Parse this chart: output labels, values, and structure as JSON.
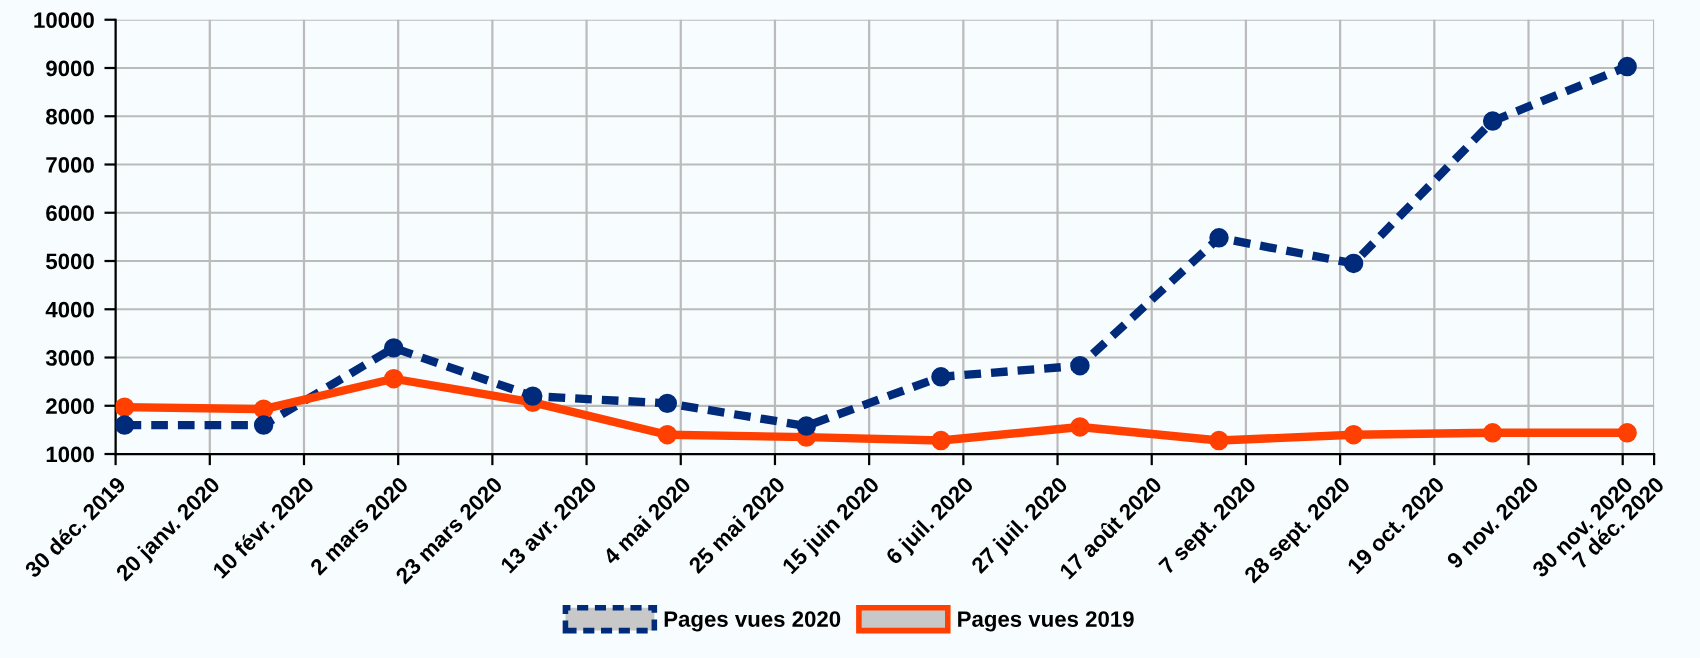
{
  "chart_data": {
    "type": "line",
    "x": [
      "2020-01-01",
      "2020-02-01",
      "2020-03-01",
      "2020-04-01",
      "2020-05-01",
      "2020-06-01",
      "2020-07-01",
      "2020-08-01",
      "2020-09-01",
      "2020-10-01",
      "2020-11-01",
      "2020-12-01"
    ],
    "series": [
      {
        "name": "Pages vues 2020",
        "color": "#002a7a",
        "line_style": "dashed",
        "values": [
          1600,
          1600,
          3200,
          2200,
          2050,
          1580,
          2600,
          2830,
          5480,
          4950,
          7900,
          9030
        ]
      },
      {
        "name": "Pages vues 2019",
        "color": "#ff4000",
        "line_style": "solid",
        "values": [
          1970,
          1930,
          2560,
          2070,
          1400,
          1350,
          1280,
          1560,
          1280,
          1400,
          1440,
          1440
        ]
      }
    ],
    "xlim": [
      "2019-12-30",
      "2020-12-07"
    ],
    "xticks": [
      {
        "value": "2019-12-30",
        "label": "30 déc. 2019"
      },
      {
        "value": "2020-01-20",
        "label": "20 janv. 2020"
      },
      {
        "value": "2020-02-10",
        "label": "10 févr. 2020"
      },
      {
        "value": "2020-03-02",
        "label": "2 mars 2020"
      },
      {
        "value": "2020-03-23",
        "label": "23 mars 2020"
      },
      {
        "value": "2020-04-13",
        "label": "13 avr. 2020"
      },
      {
        "value": "2020-05-04",
        "label": "4 mai 2020"
      },
      {
        "value": "2020-05-25",
        "label": "25 mai 2020"
      },
      {
        "value": "2020-06-15",
        "label": "15 juin 2020"
      },
      {
        "value": "2020-07-06",
        "label": "6 juil. 2020"
      },
      {
        "value": "2020-07-27",
        "label": "27 juil. 2020"
      },
      {
        "value": "2020-08-17",
        "label": "17 août 2020"
      },
      {
        "value": "2020-09-07",
        "label": "7 sept. 2020"
      },
      {
        "value": "2020-09-28",
        "label": "28 sept. 2020"
      },
      {
        "value": "2020-10-19",
        "label": "19 oct. 2020"
      },
      {
        "value": "2020-11-09",
        "label": "9 nov. 2020"
      },
      {
        "value": "2020-11-30",
        "label": "30 nov. 2020"
      },
      {
        "value": "2020-12-07",
        "label": "7 déc. 2020"
      }
    ],
    "ylim": [
      1000,
      10000
    ],
    "yticks": [
      1000,
      2000,
      3000,
      4000,
      5000,
      6000,
      7000,
      8000,
      9000,
      10000
    ],
    "grid": true,
    "legend": "bottom",
    "marker": "circle"
  }
}
